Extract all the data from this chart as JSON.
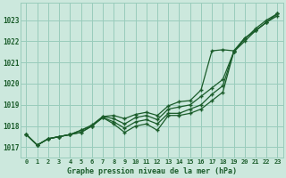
{
  "title": "Graphe pression niveau de la mer (hPa)",
  "bg_color": "#cce8dd",
  "grid_color": "#99ccbb",
  "line_color": "#1a5c2a",
  "x_labels": [
    "0",
    "1",
    "2",
    "3",
    "4",
    "5",
    "6",
    "7",
    "8",
    "9",
    "10",
    "11",
    "12",
    "13",
    "14",
    "15",
    "16",
    "17",
    "18",
    "19",
    "20",
    "21",
    "22",
    "23"
  ],
  "ylim": [
    1016.5,
    1023.8
  ],
  "yticks": [
    1017,
    1018,
    1019,
    1020,
    1021,
    1022,
    1023
  ],
  "line1": [
    1017.6,
    1017.1,
    1017.4,
    1017.5,
    1017.6,
    1017.7,
    1018.0,
    1018.4,
    1018.1,
    1017.7,
    1018.0,
    1018.1,
    1017.8,
    1018.5,
    1018.5,
    1018.6,
    1018.8,
    1019.2,
    1019.6,
    1021.5,
    1022.0,
    1022.5,
    1022.9,
    1023.2
  ],
  "line2": [
    1017.6,
    1017.1,
    1017.4,
    1017.5,
    1017.6,
    1017.7,
    1018.0,
    1018.4,
    1018.2,
    1017.9,
    1018.2,
    1018.3,
    1018.1,
    1018.6,
    1018.6,
    1018.8,
    1019.0,
    1019.5,
    1019.9,
    1021.5,
    1022.1,
    1022.6,
    1023.0,
    1023.3
  ],
  "line3": [
    1017.6,
    1017.1,
    1017.4,
    1017.5,
    1017.6,
    1017.8,
    1018.0,
    1018.45,
    1018.35,
    1018.1,
    1018.4,
    1018.5,
    1018.3,
    1018.8,
    1018.9,
    1019.0,
    1019.4,
    1019.8,
    1020.2,
    1021.5,
    1022.15,
    1022.5,
    1022.9,
    1023.3
  ],
  "line4": [
    1017.6,
    1017.1,
    1017.4,
    1017.5,
    1017.6,
    1017.8,
    1018.05,
    1018.45,
    1018.5,
    1018.35,
    1018.55,
    1018.65,
    1018.5,
    1018.95,
    1019.15,
    1019.2,
    1019.7,
    1021.55,
    1021.6,
    1021.55,
    1022.15,
    1022.5,
    1022.9,
    1023.3
  ]
}
